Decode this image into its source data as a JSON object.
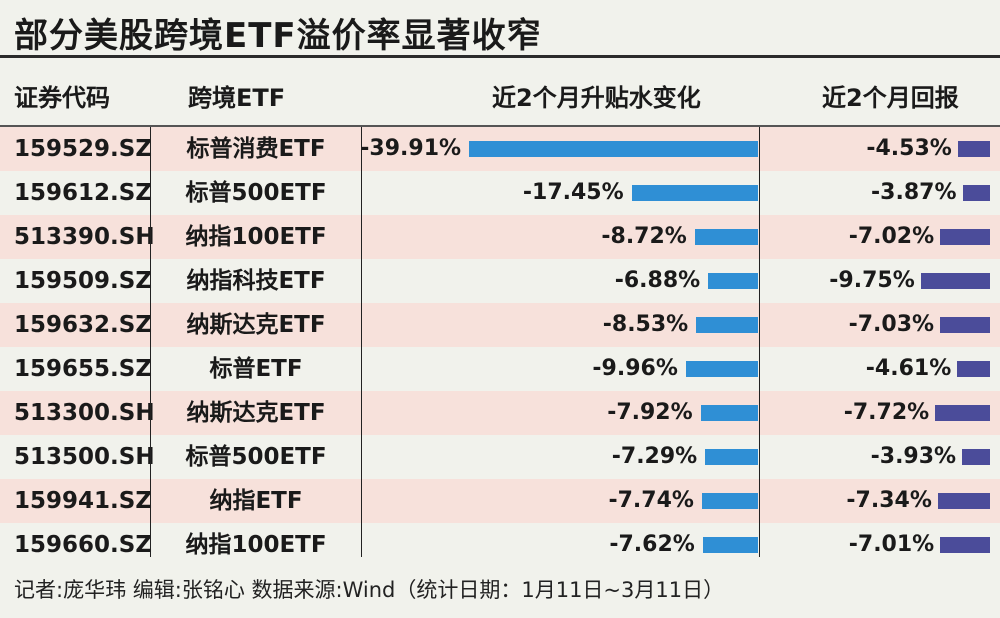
{
  "title": "部分美股跨境ETF溢价率显著收窄",
  "headers": {
    "code": "证券代码",
    "name": "跨境ETF",
    "premium_change": "近2个月升贴水变化",
    "return": "近2个月回报"
  },
  "footer": "记者:庞华玮  编辑:张铭心  数据来源:Wind（统计日期：1月11日~3月11日）",
  "colors": {
    "premium_bar": "#2f8fd5",
    "return_bar": "#4b4c9a",
    "row_highlight": "#f7e1db"
  },
  "chart_data": {
    "type": "table",
    "title": "部分美股跨境ETF溢价率显著收窄",
    "columns": [
      "证券代码",
      "跨境ETF",
      "近2个月升贴水变化",
      "近2个月回报"
    ],
    "rows": [
      {
        "code": "159529.SZ",
        "name": "标普消费ETF",
        "premium_change": -39.91,
        "premium_label": "-39.91%",
        "return": -4.53,
        "return_label": "-4.53%"
      },
      {
        "code": "159612.SZ",
        "name": "标普500ETF",
        "premium_change": -17.45,
        "premium_label": "-17.45%",
        "return": -3.87,
        "return_label": "-3.87%"
      },
      {
        "code": "513390.SH",
        "name": "纳指100ETF",
        "premium_change": -8.72,
        "premium_label": "-8.72%",
        "return": -7.02,
        "return_label": "-7.02%"
      },
      {
        "code": "159509.SZ",
        "name": "纳指科技ETF",
        "premium_change": -6.88,
        "premium_label": "-6.88%",
        "return": -9.75,
        "return_label": "-9.75%"
      },
      {
        "code": "159632.SZ",
        "name": "纳斯达克ETF",
        "premium_change": -8.53,
        "premium_label": "-8.53%",
        "return": -7.03,
        "return_label": "-7.03%"
      },
      {
        "code": "159655.SZ",
        "name": "标普ETF",
        "premium_change": -9.96,
        "premium_label": "-9.96%",
        "return": -4.61,
        "return_label": "-4.61%"
      },
      {
        "code": "513300.SH",
        "name": "纳斯达克ETF",
        "premium_change": -7.92,
        "premium_label": "-7.92%",
        "return": -7.72,
        "return_label": "-7.72%"
      },
      {
        "code": "513500.SH",
        "name": "标普500ETF",
        "premium_change": -7.29,
        "premium_label": "-7.29%",
        "return": -3.93,
        "return_label": "-3.93%"
      },
      {
        "code": "159941.SZ",
        "name": "纳指ETF",
        "premium_change": -7.74,
        "premium_label": "-7.74%",
        "return": -7.34,
        "return_label": "-7.34%"
      },
      {
        "code": "159660.SZ",
        "name": "纳指100ETF",
        "premium_change": -7.62,
        "premium_label": "-7.62%",
        "return": -7.01,
        "return_label": "-7.01%"
      }
    ]
  }
}
